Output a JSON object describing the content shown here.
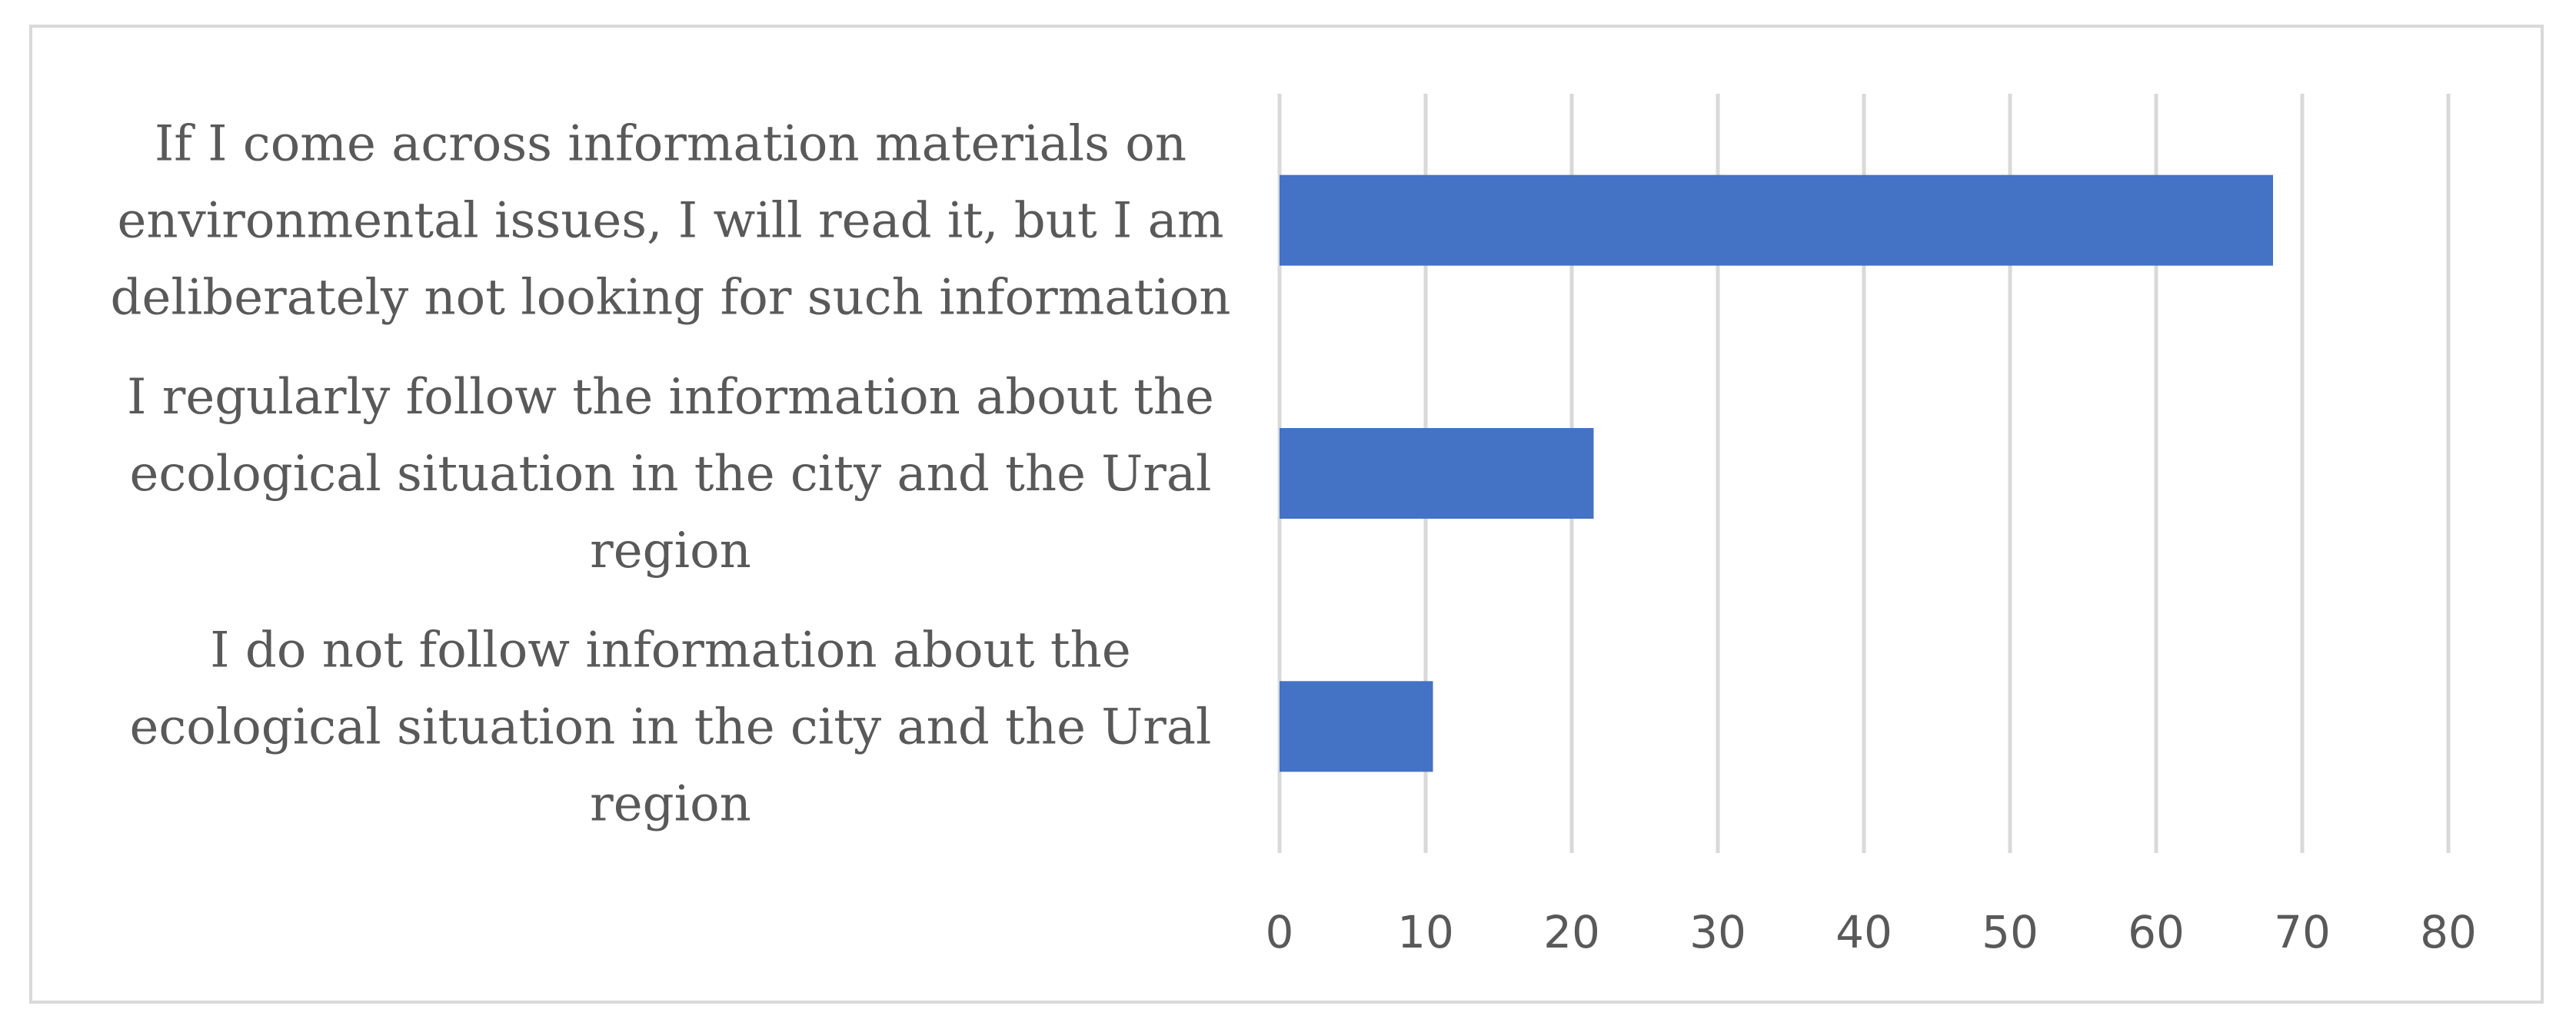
{
  "chart_data": {
    "type": "bar",
    "orientation": "horizontal",
    "categories": [
      [
        "If I come across information materials on",
        "environmental issues, I will read it, but I am",
        "deliberately not looking for such information"
      ],
      [
        "I regularly follow the information about the",
        "ecological situation in the city and the Ural",
        "region"
      ],
      [
        "I do not follow information about the",
        "ecological situation in the city and the Ural",
        "region"
      ]
    ],
    "values": [
      68,
      21.5,
      10.5
    ],
    "xlim": [
      0,
      80
    ],
    "xticks": [
      "0",
      "10",
      "20",
      "30",
      "40",
      "50",
      "60",
      "70",
      "80"
    ],
    "title": "",
    "xlabel": "",
    "ylabel": "",
    "grid": true,
    "legend": "none",
    "bar_color": "#4472C4",
    "grid_color": "#d9d9d9",
    "text_color": "#595959"
  }
}
